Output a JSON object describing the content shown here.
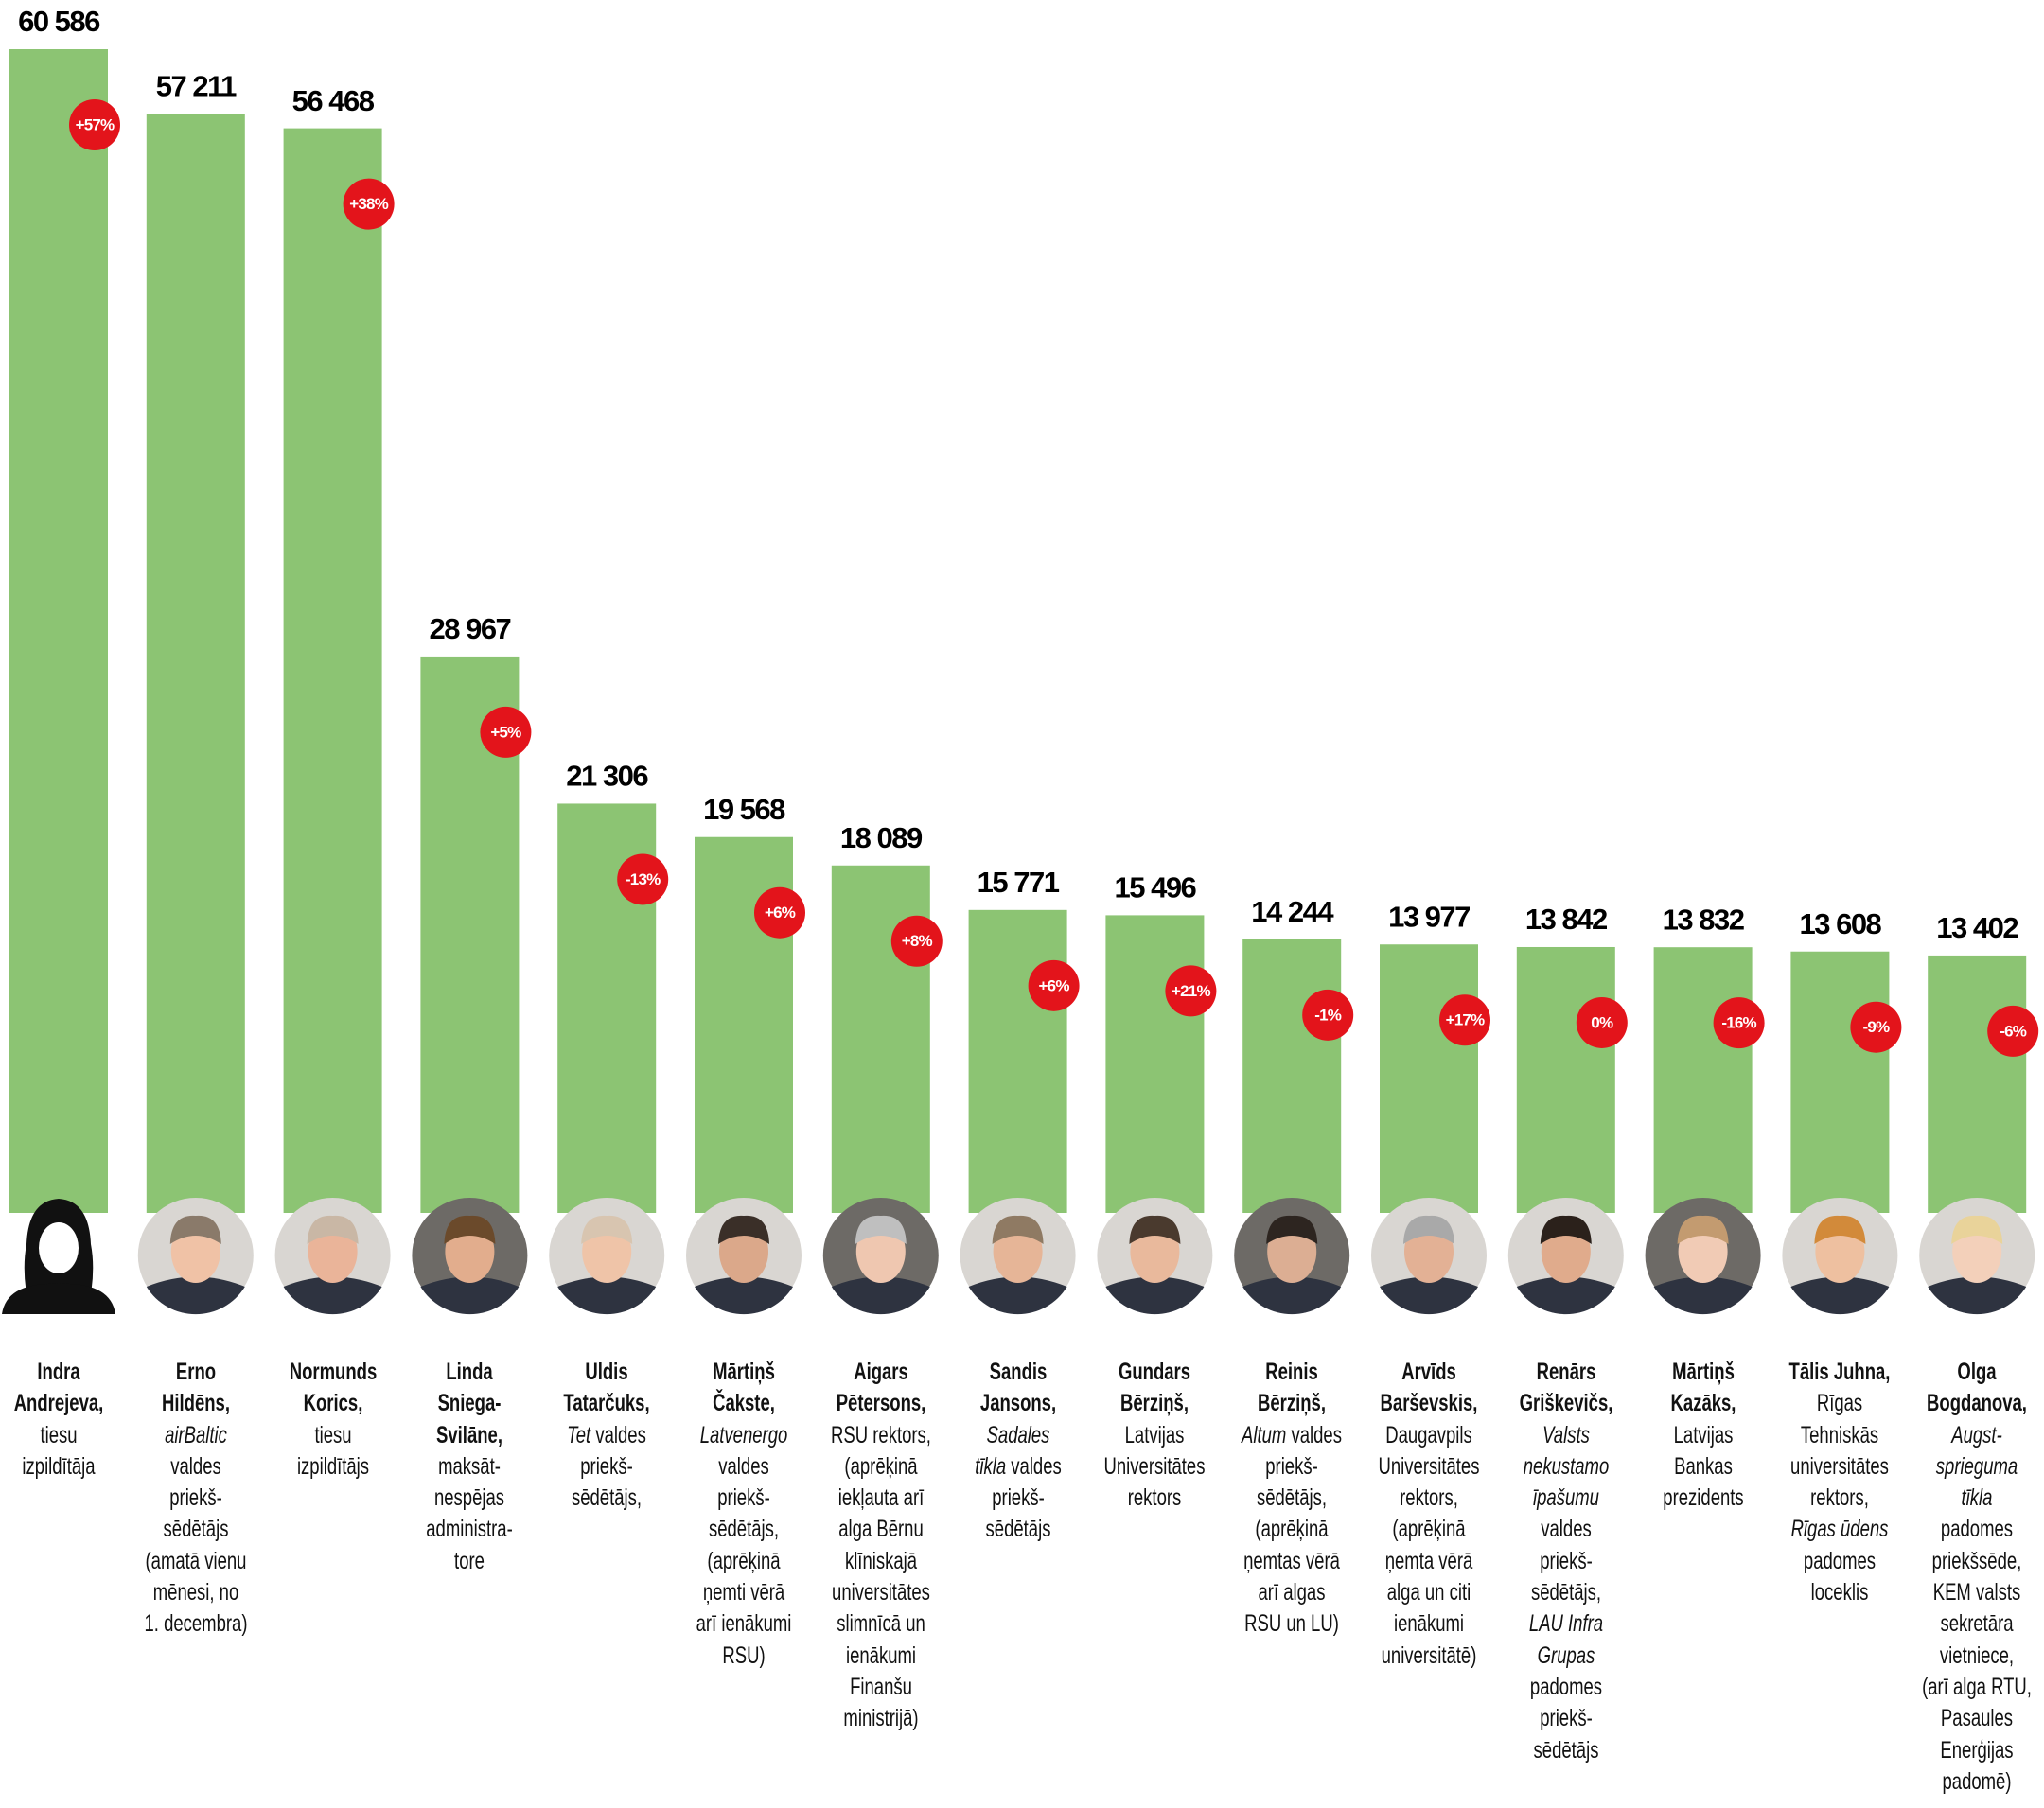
{
  "chart_data": {
    "type": "bar",
    "color": "#8cc473",
    "badge_color": "#e3141b",
    "categories": [
      "Indra\nAndrejeva,",
      "Erno\nHildēns,",
      "Normunds\nKorics,",
      "Linda\nSniega-\nSvilāne,",
      "Uldis\nTatarčuks,",
      "Mārtiņš\nČakste,",
      "Aigars\nPētersons,",
      "Sandis\nJansons,",
      "Gundars\nBērziņš,",
      "Reinis\nBērziņš,",
      "Arvīds\nBarševskis,",
      "Renārs\nGriškevičs,",
      "Mārtiņš\nKazāks,",
      "Tālis Juhna,",
      "Olga\nBogdanova,"
    ],
    "values": [
      60586,
      57211,
      56468,
      28967,
      21306,
      19568,
      18089,
      15771,
      15496,
      14244,
      13977,
      13842,
      13832,
      13608,
      13402
    ],
    "value_labels": [
      "60 586",
      "57 211",
      "56 468",
      "28 967",
      "21 306",
      "19 568",
      "18 089",
      "15 771",
      "15 496",
      "14 244",
      "13 977",
      "13 842",
      "13 832",
      "13 608",
      "13 402"
    ],
    "change_values": [
      57,
      null,
      38,
      5,
      -13,
      6,
      8,
      6,
      21,
      -1,
      17,
      0,
      -16,
      -9,
      -6
    ],
    "change_labels": [
      "+57%",
      null,
      "+38%",
      "+5%",
      "-13%",
      "+6%",
      "+8%",
      "+6%",
      "+21%",
      "-1%",
      "+17%",
      "0%",
      "-16%",
      "-9%",
      "-6%"
    ],
    "descriptions": [
      [
        {
          "text": "tiesu\nizpildītāja"
        }
      ],
      [
        {
          "text": "airBaltic",
          "italic": true
        },
        {
          "text": "\nvaldes\npriekš-\nsēdētājs\n(amatā vienu\nmēnesi, no\n1. decembra)"
        }
      ],
      [
        {
          "text": "tiesu\nizpildītājs"
        }
      ],
      [
        {
          "text": "maksāt-\nnespējas\nadministra-\ntore"
        }
      ],
      [
        {
          "text": "Tet",
          "italic": true
        },
        {
          "text": " valdes\npriekš-\nsēdētājs,"
        }
      ],
      [
        {
          "text": "Latvenergo",
          "italic": true
        },
        {
          "text": "\nvaldes\npriekš-\nsēdētājs,\n(aprēķinā\nņemti vērā\narī ienākumi\nRSU)"
        }
      ],
      [
        {
          "text": "RSU rektors,\n(aprēķinā\niekļauta arī\nalga Bērnu\nklīniskajā\nuniversitātes\nslimnīcā un\nienākumi\nFinanšu\nministrijā)"
        }
      ],
      [
        {
          "text": "Sadales\ntīkla",
          "italic": true
        },
        {
          "text": " valdes\npriekš-\nsēdētājs"
        }
      ],
      [
        {
          "text": "Latvijas\nUniversitātes\nrektors"
        }
      ],
      [
        {
          "text": "Altum",
          "italic": true
        },
        {
          "text": " valdes\npriekš-\nsēdētājs,\n(aprēķinā\nņemtas vērā\narī algas\nRSU un LU)"
        }
      ],
      [
        {
          "text": "Daugavpils\nUniversitātes\nrektors,\n(aprēķinā\nņemta vērā\nalga un citi\nienākumi\nuniversitātē)"
        }
      ],
      [
        {
          "text": "Valsts\nnekustamo\nīpašumu",
          "italic": true
        },
        {
          "text": "\nvaldes\npriekš-\nsēdētājs,\n"
        },
        {
          "text": "LAU Infra\nGrupas",
          "italic": true
        },
        {
          "text": "\npadomes\npriekš-\nsēdētājs"
        }
      ],
      [
        {
          "text": "Latvijas\nBankas\nprezidents"
        }
      ],
      [
        {
          "text": "Rīgas\nTehniskās\nuniversitātes\nrektors,\n"
        },
        {
          "text": "Rīgas ūdens",
          "italic": true
        },
        {
          "text": "\npadomes\nloceklis"
        }
      ],
      [
        {
          "text": "Augst-\nsprieguma\ntīkla",
          "italic": true
        },
        {
          "text": "\npadomes\npriekšsēde,\nKEM valsts\nsekretāra\nvietniece,\n(arī alga RTU,\nPasaules\nEnerģijas\npadomē)"
        }
      ]
    ]
  }
}
